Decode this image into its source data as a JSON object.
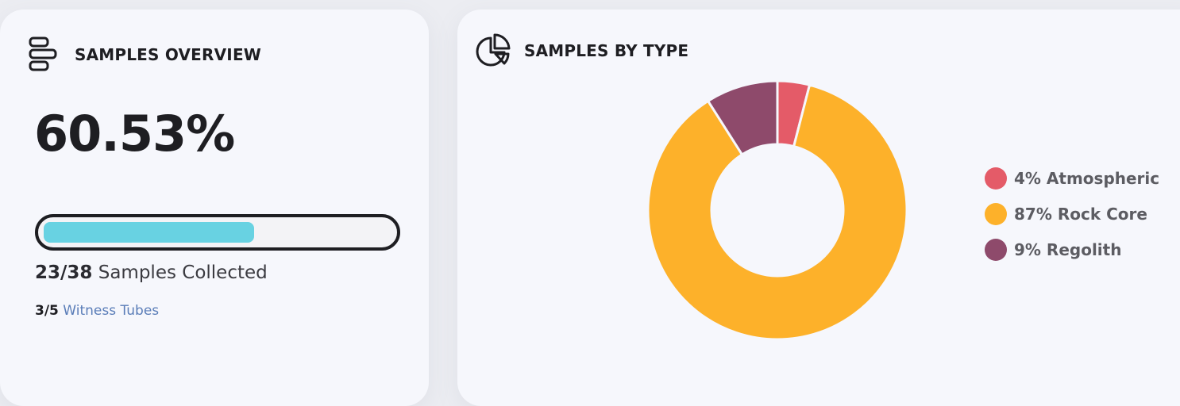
{
  "overview": {
    "title": "SAMPLES OVERVIEW",
    "icon": "list-bars-icon",
    "percent": "60.53%",
    "progress_fraction": 0.6053,
    "collected_count": "23/38",
    "collected_label": "Samples Collected",
    "tubes_count": "3/5",
    "tubes_label": "Witness Tubes",
    "progress_color": "#68d2e2"
  },
  "by_type": {
    "title": "SAMPLES BY TYPE",
    "icon": "pie-chart-icon",
    "legend": [
      {
        "label": "4% Atmospheric",
        "color": "#e45b68"
      },
      {
        "label": "87% Rock Core",
        "color": "#fdb12a"
      },
      {
        "label": "9% Regolith",
        "color": "#8e4a6b"
      }
    ]
  },
  "chart_data": {
    "type": "pie",
    "categories": [
      "Atmospheric",
      "Rock Core",
      "Regolith"
    ],
    "values": [
      4,
      87,
      9
    ],
    "colors": [
      "#e45b68",
      "#fdb12a",
      "#8e4a6b"
    ]
  }
}
